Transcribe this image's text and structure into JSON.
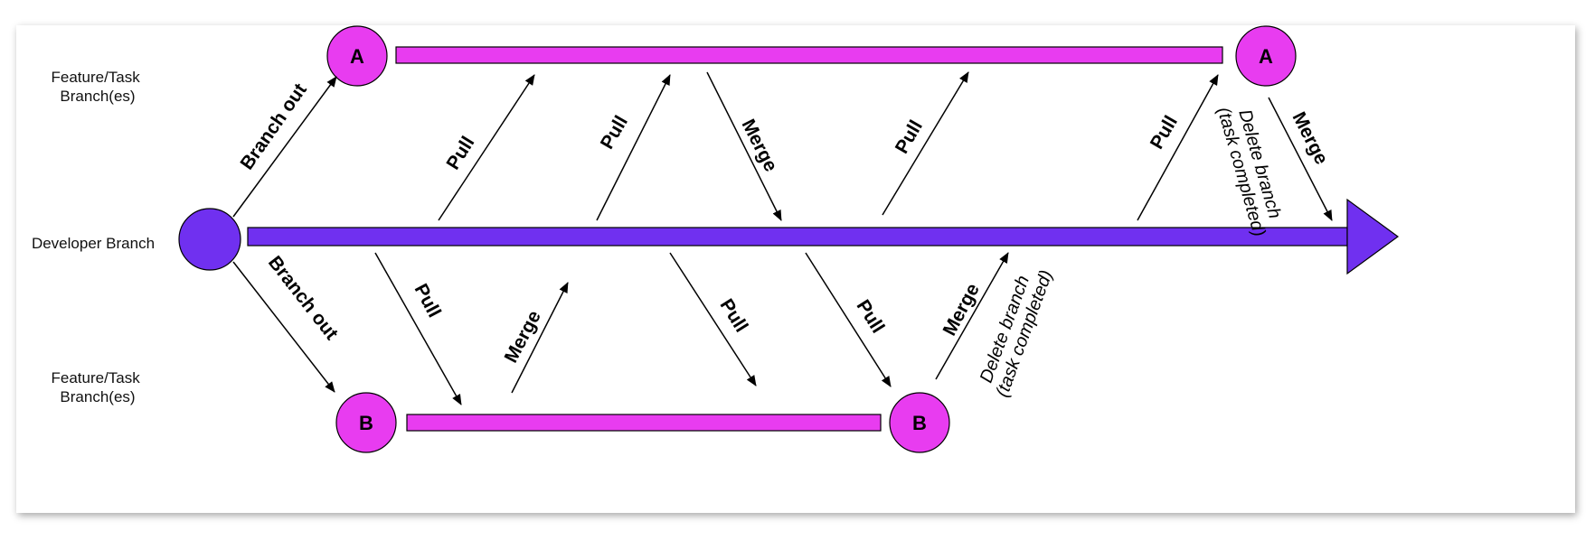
{
  "colors": {
    "feature": "#e83cf0",
    "developer": "#7030f0",
    "outline": "#000000"
  },
  "lanes": {
    "feature_top": [
      "Feature/Task",
      "Branch(es)"
    ],
    "developer": "Developer Branch",
    "feature_bottom": [
      "Feature/Task",
      "Branch(es)"
    ]
  },
  "nodes": {
    "a_start": "A",
    "a_end": "A",
    "b_start": "B",
    "b_end": "B"
  },
  "edges": {
    "branch_out_top": "Branch out",
    "branch_out_bottom": "Branch out",
    "pull": "Pull",
    "merge": "Merge",
    "delete_line1": "Delete branch",
    "delete_line2": "(task completed)"
  }
}
